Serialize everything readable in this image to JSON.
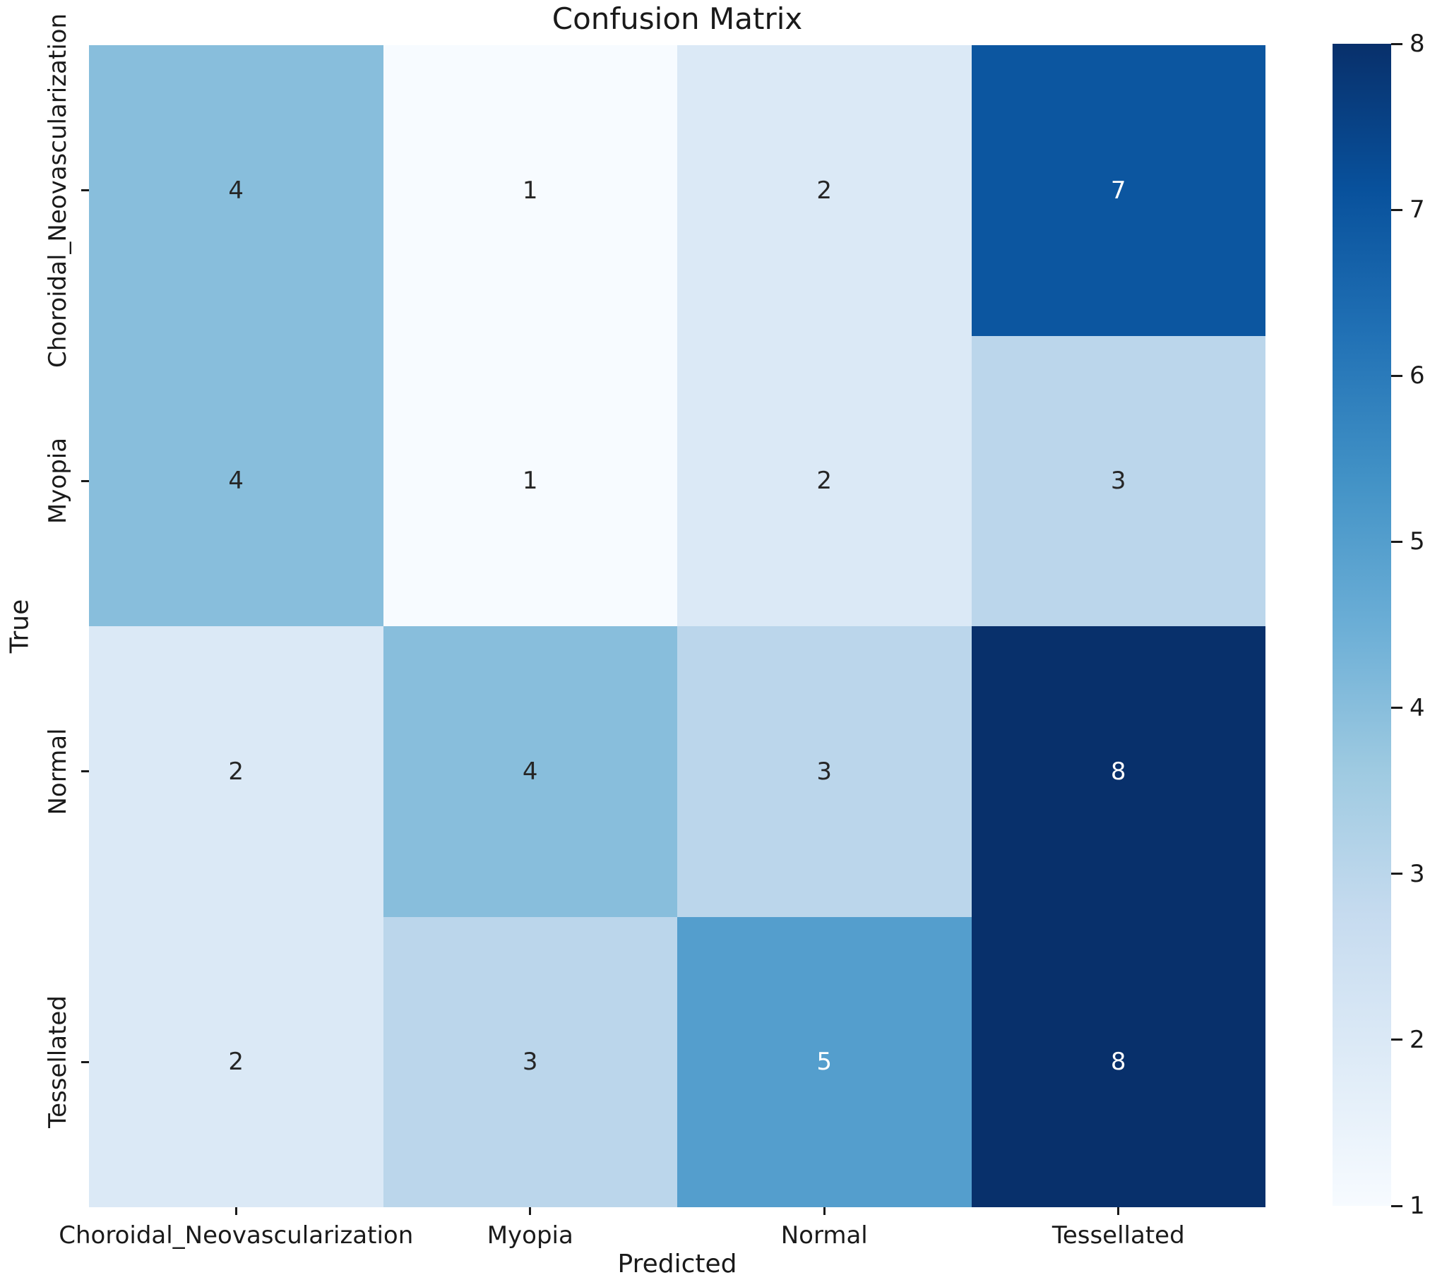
{
  "colors": {
    "background": "#ffffff",
    "text": "#1a1a1a",
    "annotation_dark": "#262626",
    "annotation_light": "#ffffff"
  },
  "chart_data": {
    "type": "heatmap",
    "title": "Confusion Matrix",
    "xlabel": "Predicted",
    "ylabel": "True",
    "x_categories": [
      "Choroidal_Neovascularization",
      "Myopia",
      "Normal",
      "Tessellated"
    ],
    "y_categories": [
      "Choroidal_Neovascularization",
      "Myopia",
      "Normal",
      "Tessellated"
    ],
    "matrix": [
      [
        4,
        1,
        2,
        7
      ],
      [
        4,
        1,
        2,
        3
      ],
      [
        2,
        4,
        3,
        8
      ],
      [
        2,
        3,
        5,
        8
      ]
    ],
    "vmin": 1,
    "vmax": 8,
    "colorbar_ticks": [
      1,
      2,
      3,
      4,
      5,
      6,
      7,
      8
    ],
    "colormap": "Blues",
    "legend_position": "right",
    "grid": false,
    "value_styles": {
      "1": {
        "bg": "#f7fbff",
        "fg": "#262626"
      },
      "2": {
        "bg": "#dbe9f6",
        "fg": "#262626"
      },
      "3": {
        "bg": "#bbd6eb",
        "fg": "#262626"
      },
      "4": {
        "bg": "#88bedc",
        "fg": "#262626"
      },
      "5": {
        "bg": "#549ecd",
        "fg": "#ffffff"
      },
      "6": {
        "bg": "#2a7aba",
        "fg": "#ffffff"
      },
      "7": {
        "bg": "#0c56a0",
        "fg": "#ffffff"
      },
      "8": {
        "bg": "#08306b",
        "fg": "#ffffff"
      }
    },
    "colorbar_gradient_stops": [
      "#f7fbff",
      "#deebf7",
      "#c6dbef",
      "#9ecae1",
      "#6baed6",
      "#4292c6",
      "#2171b5",
      "#08519c",
      "#08306b"
    ]
  }
}
